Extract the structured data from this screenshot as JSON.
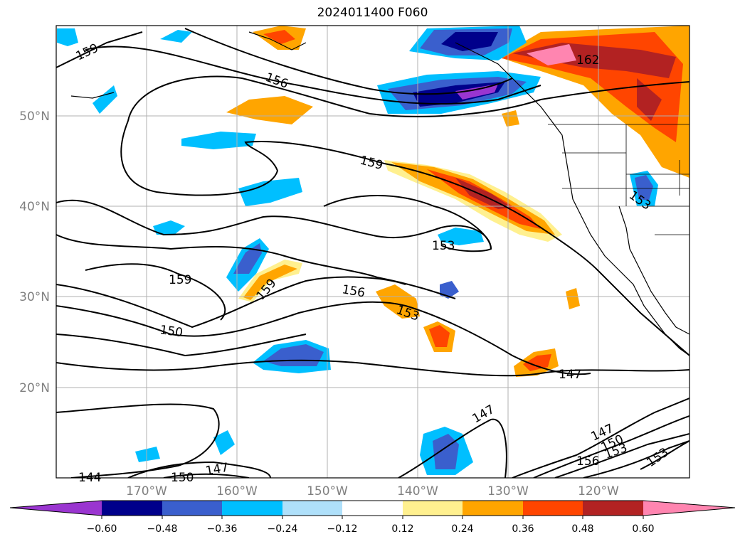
{
  "title": "2024011400 F060",
  "lat_labels": [
    "50°N",
    "40°N",
    "30°N",
    "20°N"
  ],
  "lon_labels": [
    "170°W",
    "160°W",
    "150°W",
    "140°W",
    "130°W",
    "120°W"
  ],
  "colorbar": {
    "tick_labels": [
      "−0.60",
      "−0.48",
      "−0.36",
      "−0.24",
      "−0.12",
      "0.12",
      "0.24",
      "0.36",
      "0.48",
      "0.60"
    ],
    "colors": [
      "#9a35d0",
      "#00008b",
      "#3a5fcd",
      "#00bfff",
      "#afe0fa",
      "#ffffff",
      "#fff08f",
      "#ffa500",
      "#ff4500",
      "#b22222",
      "#ff85b0"
    ]
  },
  "contour_labels": [
    "159",
    "156",
    "162",
    "159",
    "153",
    "153",
    "159",
    "159",
    "156",
    "153",
    "150",
    "147",
    "147",
    "147",
    "150",
    "153",
    "156",
    "153",
    "144",
    "150",
    "147"
  ],
  "colors": {
    "contour": "#000000",
    "grid": "#b0b0b0",
    "axis_text": "#808080"
  }
}
